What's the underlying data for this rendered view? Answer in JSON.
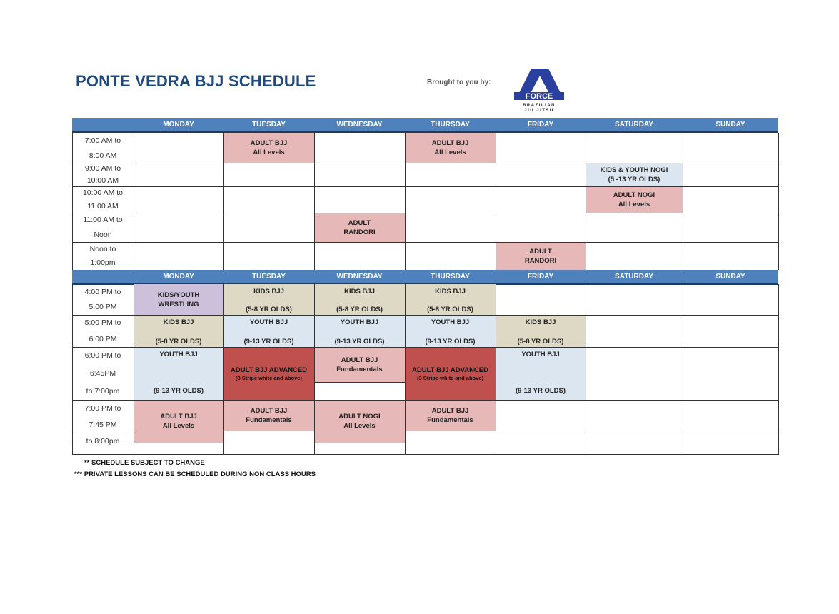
{
  "title": "PONTE VEDRA BJJ SCHEDULE",
  "brought_by": "Brought to you by:",
  "logo": {
    "text": "FORCE",
    "subtext": "BRAZILIAN JIU JITSU",
    "color": "#2b3f9e"
  },
  "days": [
    "MONDAY",
    "TUESDAY",
    "WEDNESDAY",
    "THURSDAY",
    "FRIDAY",
    "SATURDAY",
    "SUNDAY"
  ],
  "colors": {
    "header": "#4f81bd",
    "pink": "#e6b8b7",
    "blue": "#dce6f1",
    "beige": "#ddd9c4",
    "lavender": "#ccc0da",
    "red": "#c0504d"
  },
  "morning_times": [
    [
      "7:00 AM to",
      "8:00 AM"
    ],
    [
      "9:00 AM to",
      "10:00 AM"
    ],
    [
      "10:00 AM to",
      "11:00 AM"
    ],
    [
      "11:00 AM to",
      "Noon"
    ],
    [
      "Noon to",
      "1:00pm"
    ]
  ],
  "evening_times": [
    [
      "4:00 PM to",
      "5:00 PM"
    ],
    [
      "5:00 PM to",
      "6:00 PM"
    ],
    [
      "6:00 PM to",
      "6:45PM",
      "to 7:00pm"
    ],
    [
      "7:00 PM to",
      "7:45 PM",
      "to 8:00pm"
    ]
  ],
  "classes": [
    {
      "day": "TUESDAY",
      "time": "7:00 AM",
      "lines": [
        "ADULT BJJ",
        "All Levels"
      ],
      "color": "pink"
    },
    {
      "day": "THURSDAY",
      "time": "7:00 AM",
      "lines": [
        "ADULT BJJ",
        "All Levels"
      ],
      "color": "pink"
    },
    {
      "day": "SATURDAY",
      "time": "9:00 AM",
      "lines": [
        "KIDS & YOUTH NOGI",
        "(5 -13 YR OLDS)"
      ],
      "color": "blue"
    },
    {
      "day": "SATURDAY",
      "time": "10:00 AM",
      "lines": [
        "ADULT NOGI",
        "All Levels"
      ],
      "color": "pink"
    },
    {
      "day": "WEDNESDAY",
      "time": "11:00 AM",
      "lines": [
        "ADULT",
        "RANDORI"
      ],
      "color": "pink"
    },
    {
      "day": "FRIDAY",
      "time": "Noon",
      "lines": [
        "ADULT",
        "RANDORI"
      ],
      "color": "pink"
    },
    {
      "day": "MONDAY",
      "time": "4:00 PM",
      "lines": [
        "KIDS/YOUTH",
        "WRESTLING"
      ],
      "color": "lavender"
    },
    {
      "day": "TUESDAY",
      "time": "4:00 PM",
      "lines": [
        "KIDS BJJ",
        "(5-8 YR OLDS)"
      ],
      "color": "beige"
    },
    {
      "day": "WEDNESDAY",
      "time": "4:00 PM",
      "lines": [
        "KIDS BJJ",
        "(5-8 YR OLDS)"
      ],
      "color": "beige"
    },
    {
      "day": "THURSDAY",
      "time": "4:00 PM",
      "lines": [
        "KIDS BJJ",
        "(5-8 YR OLDS)"
      ],
      "color": "beige"
    },
    {
      "day": "MONDAY",
      "time": "5:00 PM",
      "lines": [
        "KIDS BJJ",
        "(5-8 YR OLDS)"
      ],
      "color": "beige"
    },
    {
      "day": "TUESDAY",
      "time": "5:00 PM",
      "lines": [
        "YOUTH BJJ",
        "(9-13 YR OLDS)"
      ],
      "color": "blue"
    },
    {
      "day": "WEDNESDAY",
      "time": "5:00 PM",
      "lines": [
        "YOUTH BJJ",
        "(9-13 YR OLDS)"
      ],
      "color": "blue"
    },
    {
      "day": "THURSDAY",
      "time": "5:00 PM",
      "lines": [
        "YOUTH BJJ",
        "(9-13 YR OLDS)"
      ],
      "color": "blue"
    },
    {
      "day": "FRIDAY",
      "time": "5:00 PM",
      "lines": [
        "KIDS BJJ",
        "(5-8 YR OLDS)"
      ],
      "color": "beige"
    },
    {
      "day": "MONDAY",
      "time": "6:00 PM",
      "lines": [
        "YOUTH BJJ",
        "(9-13 YR OLDS)"
      ],
      "color": "blue"
    },
    {
      "day": "TUESDAY",
      "time": "6:00 PM",
      "lines": [
        "ADULT BJJ ADVANCED",
        "(3 Stripe white and above)"
      ],
      "color": "red"
    },
    {
      "day": "WEDNESDAY",
      "time": "6:00 PM",
      "lines": [
        "ADULT BJJ",
        "Fundamentals"
      ],
      "color": "pink"
    },
    {
      "day": "THURSDAY",
      "time": "6:00 PM",
      "lines": [
        "ADULT BJJ ADVANCED",
        "(3 Stripe white and above)"
      ],
      "color": "red"
    },
    {
      "day": "FRIDAY",
      "time": "6:00 PM",
      "lines": [
        "YOUTH BJJ",
        "(9-13 YR OLDS)"
      ],
      "color": "blue"
    },
    {
      "day": "MONDAY",
      "time": "7:00 PM",
      "lines": [
        "ADULT BJJ",
        "All Levels"
      ],
      "color": "pink"
    },
    {
      "day": "TUESDAY",
      "time": "7:00 PM",
      "lines": [
        "ADULT BJJ",
        "Fundamentals"
      ],
      "color": "pink"
    },
    {
      "day": "WEDNESDAY",
      "time": "7:00 PM",
      "lines": [
        "ADULT NOGI",
        "All Levels"
      ],
      "color": "pink"
    },
    {
      "day": "THURSDAY",
      "time": "7:00 PM",
      "lines": [
        "ADULT BJJ",
        "Fundamentals"
      ],
      "color": "pink"
    }
  ],
  "notes": [
    "**  SCHEDULE SUBJECT TO CHANGE",
    "***   PRIVATE LESSONS CAN BE SCHEDULED DURING NON CLASS HOURS"
  ]
}
